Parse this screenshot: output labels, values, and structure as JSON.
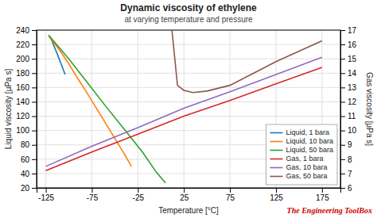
{
  "chart_data": {
    "type": "line",
    "title": "Dynamic viscosity of ethylene",
    "subtitle": "at varying temperature and pressure",
    "xlabel": "Temperature [°C]",
    "ylabel": "Liquid viscosity [μPa s]",
    "y2label": "Gas viscosity [μPa s]",
    "xlim": [
      -135,
      195
    ],
    "ylim": [
      20,
      240
    ],
    "y2lim": [
      6,
      17
    ],
    "xticks": [
      -125,
      -75,
      -25,
      25,
      75,
      125,
      175
    ],
    "yticks": [
      20,
      40,
      60,
      80,
      100,
      120,
      140,
      160,
      180,
      200,
      220,
      240
    ],
    "y2ticks": [
      6,
      7,
      8,
      9,
      10,
      11,
      12,
      13,
      14,
      15,
      16,
      17
    ],
    "grid": true,
    "legend": "lower right",
    "annotations": [
      {
        "text": "The Engineering ToolBox",
        "color": "#cc0000"
      }
    ],
    "series": [
      {
        "name": "Liquid, 1 bara",
        "x": [
          -120,
          -112,
          -104
        ],
        "values": [
          230,
          205,
          178
        ]
      },
      {
        "name": "Liquid, 10 bara",
        "x": [
          -122,
          -110,
          -100,
          -90,
          -80,
          -70,
          -60,
          -50,
          -40,
          -32
        ],
        "values": [
          232,
          212,
          193,
          172,
          152,
          131,
          110,
          89,
          68,
          50
        ]
      },
      {
        "name": "Liquid, 50 bara",
        "x": [
          -122,
          -100,
          -80,
          -60,
          -40,
          -20,
          -5,
          5
        ],
        "values": [
          233,
          200,
          167,
          134,
          102,
          70,
          42,
          27
        ]
      },
      {
        "name": "Gas, 1 bara",
        "axis": "y2",
        "x": [
          -125,
          -75,
          -25,
          25,
          75,
          125,
          175
        ],
        "values": [
          7.2,
          8.5,
          9.75,
          11.0,
          12.1,
          13.25,
          14.4
        ]
      },
      {
        "name": "Gas, 10 bara",
        "axis": "y2",
        "x": [
          -125,
          -75,
          -25,
          25,
          75,
          125,
          175
        ],
        "values": [
          7.5,
          8.9,
          10.2,
          11.55,
          12.7,
          13.9,
          15.1
        ]
      },
      {
        "name": "Gas, 50 bara",
        "axis": "y2",
        "x": [
          12,
          18,
          25,
          35,
          50,
          75,
          125,
          175
        ],
        "values": [
          17.0,
          13.15,
          12.8,
          12.65,
          12.75,
          13.15,
          14.8,
          16.25
        ]
      }
    ]
  }
}
